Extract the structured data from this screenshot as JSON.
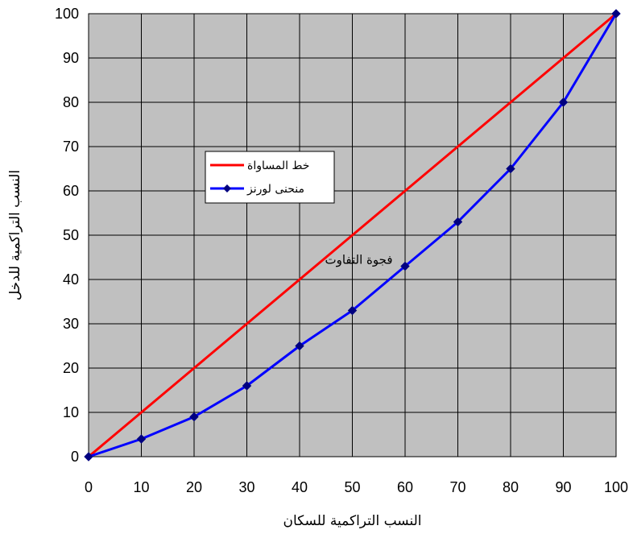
{
  "chart_data": {
    "type": "line",
    "title": "",
    "xlabel": "النسب التراكمية للسكان",
    "ylabel": "النسب التراكمية للدخل",
    "x": [
      0,
      10,
      20,
      30,
      40,
      50,
      60,
      70,
      80,
      90,
      100
    ],
    "xlim": [
      0,
      100
    ],
    "ylim": [
      0,
      100
    ],
    "xticks": [
      "0",
      "10",
      "20",
      "30",
      "40",
      "50",
      "60",
      "70",
      "80",
      "90",
      "100"
    ],
    "yticks": [
      "0",
      "10",
      "20",
      "30",
      "40",
      "50",
      "60",
      "70",
      "80",
      "90",
      "100"
    ],
    "grid": true,
    "legend_position": "upper-left",
    "plot_background": "#c0c0c0",
    "series": [
      {
        "name": "خط المساواة",
        "color": "#ff0000",
        "markers": false,
        "values": [
          0,
          10,
          20,
          30,
          40,
          50,
          60,
          70,
          80,
          90,
          100
        ]
      },
      {
        "name": "منحنى لورنز",
        "color": "#0000ff",
        "marker_color": "#000080",
        "markers": true,
        "values": [
          0,
          4,
          9,
          16,
          25,
          33,
          43,
          53,
          65,
          80,
          100
        ]
      }
    ],
    "annotations": [
      {
        "text": "فجوة التفاوت",
        "x": 50,
        "y": 45
      }
    ]
  }
}
